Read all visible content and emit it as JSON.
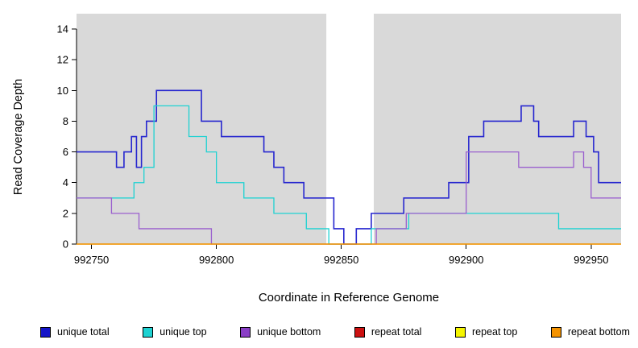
{
  "chart_data": {
    "type": "line",
    "title": "",
    "xlabel": "Coordinate in Reference Genome",
    "ylabel": "Read Coverage Depth",
    "xlim": [
      992744,
      992962
    ],
    "ylim": [
      0,
      15
    ],
    "xticks": [
      992750,
      992800,
      992850,
      992900,
      992950
    ],
    "yticks": [
      0,
      2,
      4,
      6,
      8,
      10,
      12,
      14
    ],
    "grid": "off",
    "legend_position": "bottom",
    "plot_bg": "#d9d9d9",
    "highlight": {
      "x_start": 992844,
      "x_end": 992863,
      "color": "#ffffff"
    },
    "step": "after",
    "series": [
      {
        "name": "unique total",
        "color": "#2626cf",
        "width": 1.6,
        "points": [
          [
            992744,
            6
          ],
          [
            992760,
            5
          ],
          [
            992763,
            6
          ],
          [
            992766,
            7
          ],
          [
            992768,
            5
          ],
          [
            992770,
            7
          ],
          [
            992772,
            8
          ],
          [
            992776,
            10
          ],
          [
            992794,
            8
          ],
          [
            992802,
            7
          ],
          [
            992819,
            6
          ],
          [
            992823,
            5
          ],
          [
            992827,
            4
          ],
          [
            992835,
            3
          ],
          [
            992847,
            1
          ],
          [
            992851,
            0
          ],
          [
            992856,
            1
          ],
          [
            992862,
            2
          ],
          [
            992875,
            3
          ],
          [
            992893,
            4
          ],
          [
            992901,
            7
          ],
          [
            992907,
            8
          ],
          [
            992922,
            9
          ],
          [
            992927,
            8
          ],
          [
            992929,
            7
          ],
          [
            992943,
            8
          ],
          [
            992948,
            7
          ],
          [
            992951,
            6
          ],
          [
            992953,
            4
          ]
        ]
      },
      {
        "name": "unique top",
        "color": "#1ed2d2",
        "width": 1.3,
        "points": [
          [
            992744,
            3
          ],
          [
            992767,
            4
          ],
          [
            992771,
            5
          ],
          [
            992775,
            9
          ],
          [
            992789,
            7
          ],
          [
            992796,
            6
          ],
          [
            992800,
            4
          ],
          [
            992811,
            3
          ],
          [
            992823,
            2
          ],
          [
            992836,
            1
          ],
          [
            992845,
            0
          ],
          [
            992862,
            1
          ],
          [
            992877,
            2
          ],
          [
            992937,
            1
          ]
        ]
      },
      {
        "name": "unique bottom",
        "color": "#9a5fce",
        "width": 1.3,
        "points": [
          [
            992744,
            3
          ],
          [
            992758,
            2
          ],
          [
            992769,
            1
          ],
          [
            992798,
            0
          ],
          [
            992864,
            1
          ],
          [
            992876,
            2
          ],
          [
            992900,
            6
          ],
          [
            992921,
            5
          ],
          [
            992943,
            6
          ],
          [
            992947,
            5
          ],
          [
            992950,
            3
          ]
        ]
      },
      {
        "name": "repeat total",
        "color": "#cc1111",
        "width": 1.3,
        "points": [
          [
            992744,
            0
          ]
        ]
      },
      {
        "name": "repeat top",
        "color": "#f5f500",
        "width": 1.3,
        "points": [
          [
            992744,
            0
          ]
        ]
      },
      {
        "name": "repeat bottom",
        "color": "#f59300",
        "width": 1.3,
        "points": [
          [
            992744,
            0
          ]
        ]
      }
    ],
    "legend": [
      {
        "label": "unique total",
        "color": "#1515c8"
      },
      {
        "label": "unique top",
        "color": "#1ed2d2"
      },
      {
        "label": "unique bottom",
        "color": "#8a3fc6"
      },
      {
        "label": "repeat total",
        "color": "#cc1111"
      },
      {
        "label": "repeat top",
        "color": "#f5f500"
      },
      {
        "label": "repeat bottom",
        "color": "#f59300"
      }
    ]
  }
}
